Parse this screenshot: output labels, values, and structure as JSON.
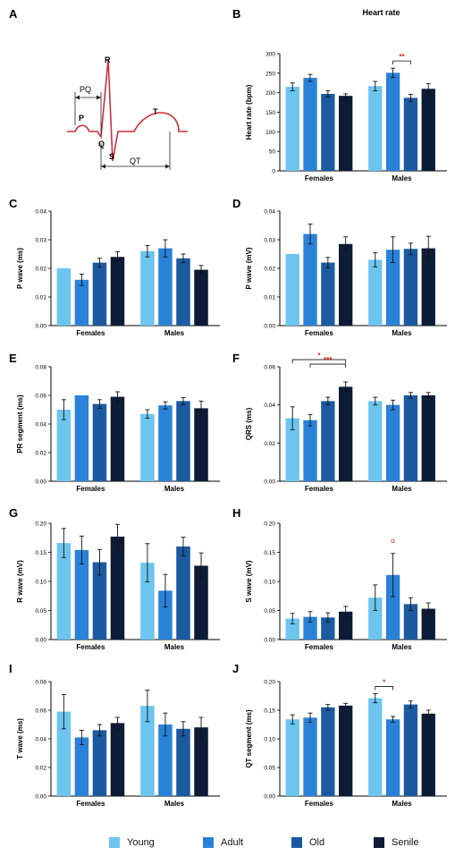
{
  "groups": [
    "Young",
    "Adult",
    "Old",
    "Senile"
  ],
  "colors": [
    "#6cc5ef",
    "#2a82d8",
    "#1b5aa0",
    "#0c1c36"
  ],
  "significance_color": "#d52b1e",
  "ecg_diagram": {
    "panel_letter": "A",
    "wave_labels": [
      "P",
      "Q",
      "R",
      "S",
      "T"
    ],
    "interval_labels": [
      "PQ",
      "QT"
    ],
    "trace_color": "#c7333b"
  },
  "chart_data": [
    {
      "panel": "B",
      "type": "bar",
      "title": "Heart rate",
      "ylabel": "Heart rate (bpm)",
      "ylim": [
        0,
        300
      ],
      "yticks": [
        0,
        50,
        100,
        150,
        200,
        250,
        300
      ],
      "tick_format": "0",
      "categories": [
        "Females",
        "Males"
      ],
      "series": [
        {
          "name": "Young",
          "values": [
            215,
            217
          ],
          "errors": [
            10,
            12
          ]
        },
        {
          "name": "Adult",
          "values": [
            238,
            251
          ],
          "errors": [
            9,
            12
          ]
        },
        {
          "name": "Old",
          "values": [
            197,
            187
          ],
          "errors": [
            8,
            9
          ]
        },
        {
          "name": "Senile",
          "values": [
            192,
            210
          ],
          "errors": [
            5,
            13
          ]
        }
      ],
      "annotations": [
        {
          "text": "**",
          "category": 1,
          "from": 1,
          "to": 2
        }
      ]
    },
    {
      "panel": "C",
      "type": "bar",
      "ylabel": "P wave (ms)",
      "ylim": [
        0,
        0.04
      ],
      "yticks": [
        0.0,
        0.01,
        0.02,
        0.03,
        0.04
      ],
      "tick_format": "0.00",
      "categories": [
        "Females",
        "Males"
      ],
      "series": [
        {
          "name": "Young",
          "values": [
            0.02,
            0.026
          ],
          "errors": [
            0,
            0.002
          ]
        },
        {
          "name": "Adult",
          "values": [
            0.016,
            0.027
          ],
          "errors": [
            0.002,
            0.003
          ]
        },
        {
          "name": "Old",
          "values": [
            0.022,
            0.0235
          ],
          "errors": [
            0.0015,
            0.0015
          ]
        },
        {
          "name": "Senile",
          "values": [
            0.024,
            0.0195
          ],
          "errors": [
            0.0018,
            0.0015
          ]
        }
      ],
      "annotations": []
    },
    {
      "panel": "D",
      "type": "bar",
      "ylabel": "P wave (mV)",
      "ylim": [
        0,
        0.04
      ],
      "yticks": [
        0.0,
        0.01,
        0.02,
        0.03,
        0.04
      ],
      "tick_format": "0.00",
      "categories": [
        "Females",
        "Males"
      ],
      "series": [
        {
          "name": "Young",
          "values": [
            0.025,
            0.023
          ],
          "errors": [
            0,
            0.0025
          ]
        },
        {
          "name": "Adult",
          "values": [
            0.032,
            0.0265
          ],
          "errors": [
            0.0035,
            0.0045
          ]
        },
        {
          "name": "Old",
          "values": [
            0.022,
            0.0268
          ],
          "errors": [
            0.0018,
            0.002
          ]
        },
        {
          "name": "Senile",
          "values": [
            0.0285,
            0.027
          ],
          "errors": [
            0.0025,
            0.0042
          ]
        }
      ],
      "annotations": []
    },
    {
      "panel": "E",
      "type": "bar",
      "ylabel": "PR segment (ms)",
      "ylim": [
        0,
        0.08
      ],
      "yticks": [
        0.0,
        0.02,
        0.04,
        0.06,
        0.08
      ],
      "tick_format": "0.00",
      "categories": [
        "Females",
        "Males"
      ],
      "series": [
        {
          "name": "Young",
          "values": [
            0.05,
            0.047
          ],
          "errors": [
            0.007,
            0.003
          ]
        },
        {
          "name": "Adult",
          "values": [
            0.06,
            0.053
          ],
          "errors": [
            0,
            0.0025
          ]
        },
        {
          "name": "Old",
          "values": [
            0.054,
            0.056
          ],
          "errors": [
            0.003,
            0.0025
          ]
        },
        {
          "name": "Senile",
          "values": [
            0.059,
            0.051
          ],
          "errors": [
            0.0035,
            0.005
          ]
        }
      ],
      "annotations": []
    },
    {
      "panel": "F",
      "type": "bar",
      "ylabel": "QRS (ms)",
      "ylim": [
        0,
        0.06
      ],
      "yticks": [
        0.0,
        0.02,
        0.04,
        0.06
      ],
      "tick_format": "0.00",
      "categories": [
        "Females",
        "Males"
      ],
      "series": [
        {
          "name": "Young",
          "values": [
            0.033,
            0.042
          ],
          "errors": [
            0.006,
            0.002
          ]
        },
        {
          "name": "Adult",
          "values": [
            0.032,
            0.04
          ],
          "errors": [
            0.003,
            0.0025
          ]
        },
        {
          "name": "Old",
          "values": [
            0.042,
            0.045
          ],
          "errors": [
            0.002,
            0.0015
          ]
        },
        {
          "name": "Senile",
          "values": [
            0.0495,
            0.045
          ],
          "errors": [
            0.0025,
            0.0015
          ]
        }
      ],
      "annotations": [
        {
          "text": "*",
          "category": 0,
          "from": 0,
          "to": 3
        },
        {
          "text": "***",
          "category": 0,
          "from": 1,
          "to": 3
        }
      ]
    },
    {
      "panel": "G",
      "type": "bar",
      "ylabel": "R wave (mV)",
      "ylim": [
        0,
        0.2
      ],
      "yticks": [
        0.0,
        0.05,
        0.1,
        0.15,
        0.2
      ],
      "tick_format": "0.00",
      "categories": [
        "Females",
        "Males"
      ],
      "series": [
        {
          "name": "Young",
          "values": [
            0.166,
            0.132
          ],
          "errors": [
            0.025,
            0.033
          ]
        },
        {
          "name": "Adult",
          "values": [
            0.154,
            0.084
          ],
          "errors": [
            0.024,
            0.028
          ]
        },
        {
          "name": "Old",
          "values": [
            0.133,
            0.16
          ],
          "errors": [
            0.022,
            0.016
          ]
        },
        {
          "name": "Senile",
          "values": [
            0.177,
            0.127
          ],
          "errors": [
            0.021,
            0.022
          ]
        }
      ],
      "annotations": []
    },
    {
      "panel": "H",
      "type": "bar",
      "ylabel": "S wave (mV)",
      "ylim": [
        0,
        0.2
      ],
      "yticks": [
        0.0,
        0.05,
        0.1,
        0.15,
        0.2
      ],
      "tick_format": "0.00",
      "categories": [
        "Females",
        "Males"
      ],
      "series": [
        {
          "name": "Young",
          "values": [
            0.036,
            0.072
          ],
          "errors": [
            0.009,
            0.022
          ]
        },
        {
          "name": "Adult",
          "values": [
            0.039,
            0.111
          ],
          "errors": [
            0.009,
            0.037
          ]
        },
        {
          "name": "Old",
          "values": [
            0.038,
            0.061
          ],
          "errors": [
            0.008,
            0.011
          ]
        },
        {
          "name": "Senile",
          "values": [
            0.048,
            0.053
          ],
          "errors": [
            0.009,
            0.01
          ]
        }
      ],
      "annotations": [
        {
          "text": "α",
          "category": 1,
          "over": 1
        }
      ]
    },
    {
      "panel": "I",
      "type": "bar",
      "ylabel": "T wave (ms)",
      "ylim": [
        0,
        0.08
      ],
      "yticks": [
        0.0,
        0.02,
        0.04,
        0.06,
        0.08
      ],
      "tick_format": "0.00",
      "categories": [
        "Females",
        "Males"
      ],
      "series": [
        {
          "name": "Young",
          "values": [
            0.059,
            0.063
          ],
          "errors": [
            0.012,
            0.011
          ]
        },
        {
          "name": "Adult",
          "values": [
            0.041,
            0.05
          ],
          "errors": [
            0.005,
            0.008
          ]
        },
        {
          "name": "Old",
          "values": [
            0.046,
            0.047
          ],
          "errors": [
            0.004,
            0.005
          ]
        },
        {
          "name": "Senile",
          "values": [
            0.051,
            0.048
          ],
          "errors": [
            0.004,
            0.007
          ]
        }
      ],
      "annotations": []
    },
    {
      "panel": "J",
      "type": "bar",
      "ylabel": "QT segment (ms)",
      "ylim": [
        0,
        0.2
      ],
      "yticks": [
        0.0,
        0.05,
        0.1,
        0.15,
        0.2
      ],
      "tick_format": "0.00",
      "categories": [
        "Females",
        "Males"
      ],
      "series": [
        {
          "name": "Young",
          "values": [
            0.134,
            0.171
          ],
          "errors": [
            0.008,
            0.008
          ]
        },
        {
          "name": "Adult",
          "values": [
            0.137,
            0.134
          ],
          "errors": [
            0.008,
            0.005
          ]
        },
        {
          "name": "Old",
          "values": [
            0.155,
            0.16
          ],
          "errors": [
            0.005,
            0.006
          ]
        },
        {
          "name": "Senile",
          "values": [
            0.158,
            0.144
          ],
          "errors": [
            0.004,
            0.006
          ]
        }
      ],
      "annotations": [
        {
          "text": "*",
          "category": 1,
          "from": 0,
          "to": 1
        }
      ]
    }
  ]
}
